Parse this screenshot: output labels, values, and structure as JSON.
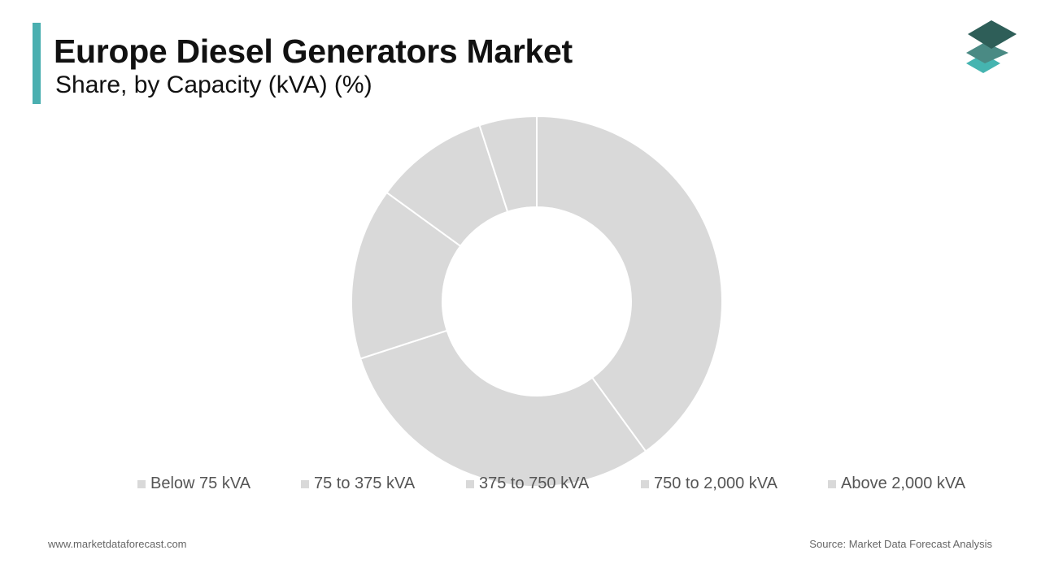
{
  "header": {
    "title": "Europe Diesel Generators Market",
    "subtitle": "Share, by Capacity (kVA) (%)"
  },
  "colors": {
    "accent": "#4aafb0",
    "slice": "#d9d9d9",
    "separator": "#ffffff",
    "logo_top": "#2e5e58",
    "logo_mid": "#4a8a84",
    "logo_bottom": "#45b4b0"
  },
  "logo": {
    "icon": "stacked-layers-icon"
  },
  "chart_data": {
    "type": "pie",
    "donut": true,
    "categories": [
      "Below 75 kVA",
      "75 to 375 kVA",
      "375 to 750 kVA",
      "750 to 2,000 kVA",
      "Above 2,000 kVA"
    ],
    "values": [
      40,
      30,
      15,
      10,
      5
    ],
    "title": "Europe Diesel Generators Market",
    "subtitle": "Share, by Capacity (kVA) (%)",
    "legend_position": "bottom",
    "data_labels": false
  },
  "footer": {
    "website": "www.marketdataforecast.com",
    "source": "Source: Market Data Forecast Analysis"
  }
}
